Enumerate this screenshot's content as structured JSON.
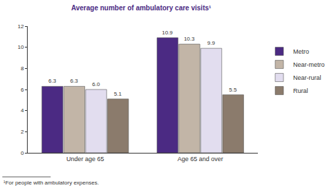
{
  "chart_data": {
    "type": "bar",
    "title": "Average number of ambulatory care visits¹",
    "categories": [
      "Under age 65",
      "Age 65 and over"
    ],
    "series": [
      {
        "name": "Metro",
        "color": "#4b2a83",
        "values": [
          6.3,
          10.9
        ]
      },
      {
        "name": "Near-metro",
        "color": "#c2b5a7",
        "values": [
          6.3,
          10.3
        ]
      },
      {
        "name": "Near-rural",
        "color": "#e2ddef",
        "values": [
          6.0,
          9.9
        ],
        "value_labels": [
          "6.0",
          "9.9"
        ]
      },
      {
        "name": "Rural",
        "color": "#8b7b6c",
        "values": [
          5.1,
          5.5
        ]
      }
    ],
    "ylim": [
      0,
      12
    ],
    "yticks": [
      0,
      2,
      4,
      6,
      8,
      10,
      12
    ],
    "grid": false,
    "legend": "right",
    "data_labels": true,
    "annotations": [
      "¹For people with ambulatory expenses."
    ]
  }
}
